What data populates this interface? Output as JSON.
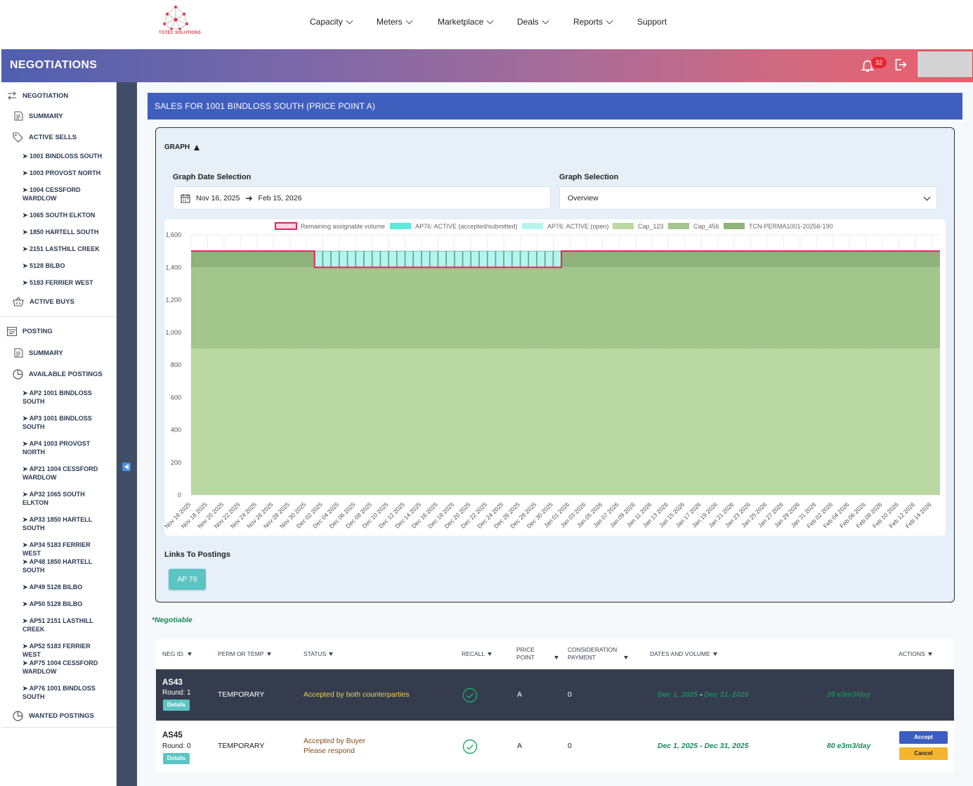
{
  "brand": {
    "logo_text": "TOTEC SOLUTIONS"
  },
  "nav": [
    {
      "label": "Capacity",
      "has_dropdown": true
    },
    {
      "label": "Meters",
      "has_dropdown": true
    },
    {
      "label": "Marketplace",
      "has_dropdown": true
    },
    {
      "label": "Deals",
      "has_dropdown": true
    },
    {
      "label": "Reports",
      "has_dropdown": true
    },
    {
      "label": "Support",
      "has_dropdown": false
    }
  ],
  "banner": {
    "title": "NEGOTIATIONS",
    "notification_count": "32"
  },
  "sidebar": {
    "negotiation": "NEGOTIATION",
    "summary": "SUMMARY",
    "active_sells": "ACTIVE SELLS",
    "sell_items": [
      "➤ 1001 BINDLOSS SOUTH",
      "➤ 1003 PROVOST NORTH",
      "➤ 1004 CESSFORD WARDLOW",
      "➤ 1065 SOUTH ELKTON",
      "➤ 1850 HARTELL SOUTH",
      "➤ 2151 LASTHILL CREEK",
      "➤ 5128 BILBO",
      "➤ 5183 FERRIER WEST"
    ],
    "active_buys": "ACTIVE BUYS",
    "posting": "POSTING",
    "posting_summary": "SUMMARY",
    "available_postings": "AVAILABLE POSTINGS",
    "posting_items": [
      "➤ AP2 1001 BINDLOSS SOUTH",
      "➤ AP3 1001 BINDLOSS SOUTH",
      "➤ AP4 1003 PROVOST NORTH",
      "➤ AP21 1004 CESSFORD WARDLOW",
      "➤ AP32 1065 SOUTH ELKTON",
      "➤ AP33 1850 HARTELL SOUTH",
      "➤ AP34 5183 FERRIER WEST",
      "➤ AP48 1850 HARTELL SOUTH",
      "➤ AP49 5128 BILBO",
      "➤ AP50 5128 BILBO",
      "➤ AP51 2151 LASTHILL CREEK",
      "➤ AP52 5183 FERRIER WEST",
      "➤ AP75 1004 CESSFORD WARDLOW",
      "➤ AP76 1001 BINDLOSS SOUTH"
    ],
    "wanted_postings": "WANTED POSTINGS"
  },
  "sales": {
    "title": "SALES FOR 1001 BINDLOSS SOUTH (PRICE POINT A)"
  },
  "graph": {
    "toggle_label": "GRAPH",
    "date_selection_label": "Graph Date Selection",
    "date_from": "Nov 16, 2025",
    "date_to": "Feb 15, 2026",
    "selection_label": "Graph Selection",
    "selection_value": "Overview",
    "links_label": "Links To Postings",
    "link_button": "AP 76"
  },
  "chart_data": {
    "type": "area",
    "ylim": [
      0,
      1600
    ],
    "y_ticks": [
      "0",
      "200",
      "400",
      "600",
      "800",
      "1,000",
      "1,200",
      "1,400",
      "1,600"
    ],
    "x_labels": [
      "Nov 16 2025",
      "Nov 18 2025",
      "Nov 20 2025",
      "Nov 22 2025",
      "Nov 24 2025",
      "Nov 26 2025",
      "Nov 28 2025",
      "Nov 30 2025",
      "Dec 02 2025",
      "Dec 04 2025",
      "Dec 06 2025",
      "Dec 08 2025",
      "Dec 10 2025",
      "Dec 12 2025",
      "Dec 14 2025",
      "Dec 16 2025",
      "Dec 18 2025",
      "Dec 20 2025",
      "Dec 22 2025",
      "Dec 24 2025",
      "Dec 26 2025",
      "Dec 28 2025",
      "Dec 30 2025",
      "Jan 01 2026",
      "Jan 03 2026",
      "Jan 05 2026",
      "Jan 07 2026",
      "Jan 09 2026",
      "Jan 11 2026",
      "Jan 13 2026",
      "Jan 15 2026",
      "Jan 17 2026",
      "Jan 19 2026",
      "Jan 21 2026",
      "Jan 23 2026",
      "Jan 25 2026",
      "Jan 27 2026",
      "Jan 29 2026",
      "Jan 31 2026",
      "Feb 02 2026",
      "Feb 04 2026",
      "Feb 06 2026",
      "Feb 08 2026",
      "Feb 10 2026",
      "Feb 12 2026",
      "Feb 14 2026"
    ],
    "legend": [
      {
        "name": "Remaining assignable volume",
        "color": "#ffd6e0",
        "border": "#e0245e"
      },
      {
        "name": "AP76: ACTIVE (accepted/submitted)",
        "color": "#5ee8d6"
      },
      {
        "name": "AP76: ACTIVE (open)",
        "color": "#b5f5ee"
      },
      {
        "name": "Cap_123",
        "color": "#b9d8a2"
      },
      {
        "name": "Cap_456",
        "color": "#a2c68b"
      },
      {
        "name": "TCN-PERMA1001-20256-190",
        "color": "#8fb37a"
      }
    ],
    "series": [
      {
        "name": "Cap_123",
        "value": 900,
        "from": "Nov 16 2025",
        "to": "Feb 15 2026"
      },
      {
        "name": "Cap_456",
        "value": 500,
        "from": "Nov 16 2025",
        "to": "Feb 15 2026"
      },
      {
        "name": "TCN-PERMA1001-20256-190",
        "value": 100,
        "from": "Nov 16 2025",
        "to": "Feb 15 2026"
      },
      {
        "name": "AP76: ACTIVE (open)",
        "value": 100,
        "from": "Dec 01 2025",
        "to": "Dec 31 2025"
      },
      {
        "name": "Remaining assignable volume",
        "value": 1500,
        "dip_value": 1400,
        "dip_from": "Dec 01 2025",
        "dip_to": "Dec 31 2025"
      }
    ],
    "legend_position": "top",
    "grid": true
  },
  "negotiable_note": "*Negotiable",
  "table": {
    "headers": [
      "NEG ID.",
      "PERM OR TEMP",
      "STATUS",
      "RECALL",
      "PRICE POINT",
      "CONSIDERATION PAYMENT",
      "DATES AND VOLUME",
      "ACTIONS"
    ],
    "rows": [
      {
        "id": "AS43",
        "round": "Round: 1",
        "details": "Details",
        "type": "TEMPORARY",
        "status": "Accepted by both counterparties",
        "status2": "",
        "price_point": "A",
        "payment": "0",
        "date_from": "Dec 1, 2025",
        "date_to": "Dec 31, 2025",
        "volume": "20 e3m3/day"
      },
      {
        "id": "AS45",
        "round": "Round: 0",
        "details": "Details",
        "type": "TEMPORARY",
        "status": "Accepted by Buyer",
        "status2": "Please respond",
        "price_point": "A",
        "payment": "0",
        "date_from": "Dec 1, 2025",
        "date_to": "Dec 31, 2025",
        "volume": "80 e3m3/day",
        "accept": "Accept",
        "cancel": "Cancel"
      }
    ]
  }
}
